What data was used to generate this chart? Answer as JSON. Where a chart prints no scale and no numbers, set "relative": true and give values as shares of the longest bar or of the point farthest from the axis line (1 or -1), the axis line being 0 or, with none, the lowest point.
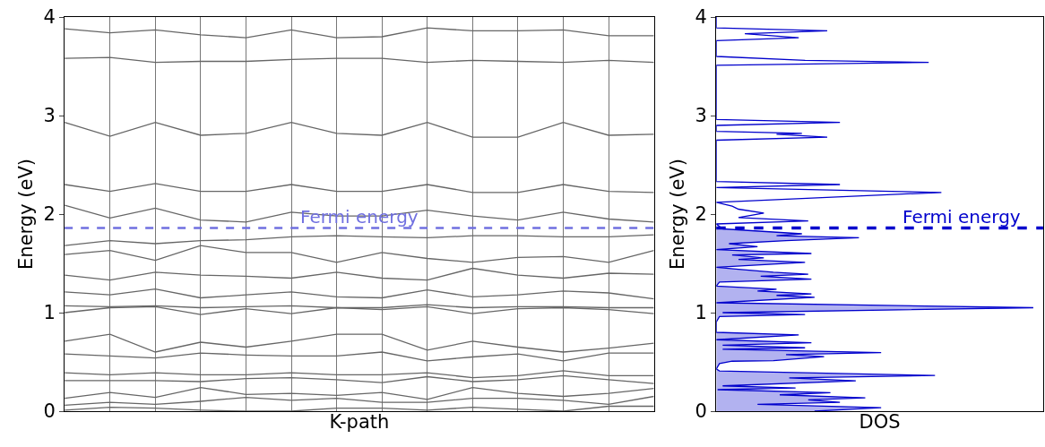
{
  "chart_data": [
    {
      "type": "line",
      "xlabel": "K-path",
      "ylabel": "Energy (eV)",
      "categories": [
        null,
        null,
        null,
        null,
        null,
        null,
        null,
        null,
        null,
        null,
        null,
        null,
        null,
        null
      ],
      "ylim": [
        0,
        4
      ],
      "yticks": [
        0,
        1,
        2,
        3,
        4
      ],
      "grid": "x",
      "tick_labels": "y",
      "series": [
        {
          "color": "#666666",
          "values": [
            0.01,
            0.04,
            0.03,
            0.01,
            0,
            0,
            0.03,
            0.03,
            0.01,
            0.04,
            0.02,
            0,
            0.05,
            0.05
          ]
        },
        {
          "color": "#666666",
          "values": [
            0.06,
            0.09,
            0.07,
            0.1,
            0.14,
            0.11,
            0.13,
            0.09,
            0.09,
            0.13,
            0.13,
            0.11,
            0.07,
            0.15
          ]
        },
        {
          "color": "#666666",
          "values": [
            0.13,
            0.19,
            0.14,
            0.24,
            0.17,
            0.18,
            0.16,
            0.19,
            0.12,
            0.24,
            0.18,
            0.15,
            0.18,
            0.23
          ]
        },
        {
          "color": "#666666",
          "values": [
            0.31,
            0.31,
            0.31,
            0.3,
            0.33,
            0.34,
            0.32,
            0.29,
            0.35,
            0.3,
            0.32,
            0.36,
            0.32,
            0.28
          ]
        },
        {
          "color": "#666666",
          "values": [
            0.39,
            0.37,
            0.39,
            0.37,
            0.37,
            0.39,
            0.37,
            0.37,
            0.39,
            0.34,
            0.36,
            0.41,
            0.36,
            0.36
          ]
        },
        {
          "color": "#666666",
          "values": [
            0.58,
            0.56,
            0.54,
            0.59,
            0.57,
            0.56,
            0.56,
            0.6,
            0.51,
            0.55,
            0.58,
            0.51,
            0.59,
            0.59
          ]
        },
        {
          "color": "#666666",
          "values": [
            0.71,
            0.78,
            0.6,
            0.7,
            0.65,
            0.71,
            0.78,
            0.78,
            0.62,
            0.71,
            0.65,
            0.6,
            0.64,
            0.69
          ]
        },
        {
          "color": "#666666",
          "values": [
            1.0,
            1.05,
            1.06,
            0.98,
            1.04,
            0.99,
            1.05,
            1.03,
            1.06,
            0.99,
            1.04,
            1.05,
            1.03,
            0.99
          ]
        },
        {
          "color": "#666666",
          "values": [
            1.07,
            1.06,
            1.07,
            1.05,
            1.06,
            1.07,
            1.05,
            1.05,
            1.08,
            1.05,
            1.06,
            1.06,
            1.05,
            1.05
          ]
        },
        {
          "color": "#666666",
          "values": [
            1.21,
            1.18,
            1.24,
            1.15,
            1.18,
            1.21,
            1.16,
            1.15,
            1.23,
            1.16,
            1.18,
            1.22,
            1.2,
            1.14
          ]
        },
        {
          "color": "#666666",
          "values": [
            1.38,
            1.33,
            1.41,
            1.38,
            1.37,
            1.35,
            1.41,
            1.35,
            1.33,
            1.45,
            1.38,
            1.35,
            1.4,
            1.39
          ]
        },
        {
          "color": "#666666",
          "values": [
            1.59,
            1.63,
            1.53,
            1.68,
            1.61,
            1.61,
            1.51,
            1.61,
            1.55,
            1.51,
            1.56,
            1.57,
            1.51,
            1.63
          ]
        },
        {
          "color": "#666666",
          "values": [
            1.68,
            1.73,
            1.7,
            1.73,
            1.74,
            1.77,
            1.78,
            1.77,
            1.76,
            1.78,
            1.78,
            1.77,
            1.77,
            1.79
          ]
        },
        {
          "color": "#666666",
          "values": [
            2.09,
            1.96,
            2.06,
            1.94,
            1.92,
            2.02,
            1.98,
            1.98,
            2.04,
            1.98,
            1.94,
            2.02,
            1.95,
            1.92
          ]
        },
        {
          "color": "#666666",
          "values": [
            2.3,
            2.23,
            2.31,
            2.23,
            2.23,
            2.3,
            2.23,
            2.23,
            2.3,
            2.22,
            2.22,
            2.3,
            2.23,
            2.22
          ]
        },
        {
          "color": "#666666",
          "values": [
            2.93,
            2.79,
            2.93,
            2.8,
            2.82,
            2.93,
            2.82,
            2.8,
            2.93,
            2.78,
            2.78,
            2.93,
            2.8,
            2.81
          ]
        },
        {
          "color": "#666666",
          "values": [
            3.58,
            3.59,
            3.54,
            3.55,
            3.55,
            3.57,
            3.58,
            3.58,
            3.54,
            3.56,
            3.55,
            3.54,
            3.56,
            3.54
          ]
        },
        {
          "color": "#666666",
          "values": [
            3.88,
            3.84,
            3.87,
            3.82,
            3.79,
            3.87,
            3.79,
            3.8,
            3.89,
            3.86,
            3.86,
            3.87,
            3.81,
            3.81
          ]
        }
      ],
      "ref_lines": [
        {
          "axis": "y",
          "value": 1.86,
          "label": "Fermi energy",
          "color": "#7070e0",
          "line_style": "dashed"
        }
      ]
    },
    {
      "type": "area",
      "orientation": "horizontal",
      "relative": true,
      "xlabel": "DOS",
      "ylabel": "Energy (eV)",
      "ylim": [
        0,
        4
      ],
      "yticks": [
        0,
        1,
        2,
        3,
        4
      ],
      "series": [
        {
          "type": "area",
          "color": "#0000cc",
          "x": [
            0,
            0.036,
            0.07,
            0.09,
            0.115,
            0.136,
            0.166,
            0.187,
            0.218,
            0.236,
            0.257,
            0.308,
            0.338,
            0.362,
            0.408,
            0.429,
            0.483,
            0.507,
            0.513,
            0.553,
            0.574,
            0.595,
            0.628,
            0.643,
            0.67,
            0.695,
            0.725,
            0.773,
            0.8,
            0.906,
            0.96,
            0.98,
            1.0,
            1.05,
            1.1,
            1.155,
            1.175,
            1.19,
            1.22,
            1.238,
            1.27,
            1.31,
            1.34,
            1.37,
            1.39,
            1.41,
            1.44,
            1.46,
            1.51,
            1.54,
            1.556,
            1.585,
            1.6,
            1.64,
            1.67,
            1.7,
            1.73,
            1.76,
            1.78,
            1.8,
            1.85
          ],
          "values": [
            0.31,
            0.52,
            0.13,
            0.39,
            0.29,
            0.47,
            0.2,
            0.36,
            0.004,
            0.25,
            0.02,
            0.44,
            0.23,
            0.69,
            0.01,
            0,
            0.01,
            0.05,
            0.18,
            0.34,
            0.22,
            0.52,
            0.02,
            0.28,
            0.02,
            0.3,
            0,
            0.26,
            0,
            0,
            0.01,
            0.28,
            0.02,
            1,
            0,
            0.31,
            0.19,
            0.3,
            0.13,
            0.19,
            0,
            0.01,
            0.3,
            0.14,
            0.29,
            0.18,
            0.07,
            0,
            0.28,
            0.07,
            0.15,
            0.05,
            0.3,
            0,
            0.13,
            0.04,
            0.22,
            0.45,
            0.19,
            0.27,
            0.02
          ]
        },
        {
          "type": "line",
          "color": "#0000cc",
          "x": [
            1.85,
            1.9,
            1.93,
            1.965,
            2.01,
            2.05,
            2.08,
            2.12,
            2.22,
            2.27,
            2.3,
            2.33,
            2.75,
            2.78,
            2.81,
            2.82,
            2.84,
            2.9,
            2.93,
            2.96,
            3.51,
            3.54,
            3.56,
            3.6,
            3.76,
            3.79,
            3.83,
            3.86,
            3.89,
            4.0
          ],
          "values": [
            0.02,
            0,
            0.29,
            0.07,
            0.15,
            0.07,
            0.05,
            0,
            0.71,
            0,
            0.39,
            0,
            0,
            0.35,
            0.19,
            0.27,
            0,
            0,
            0.39,
            0,
            0,
            0.67,
            0.28,
            0,
            0,
            0.26,
            0.09,
            0.35,
            0,
            0
          ]
        }
      ],
      "ref_lines": [
        {
          "axis": "y",
          "value": 1.86,
          "label": "Fermi energy",
          "color": "#0000cc",
          "line_style": "dashed"
        }
      ]
    }
  ]
}
